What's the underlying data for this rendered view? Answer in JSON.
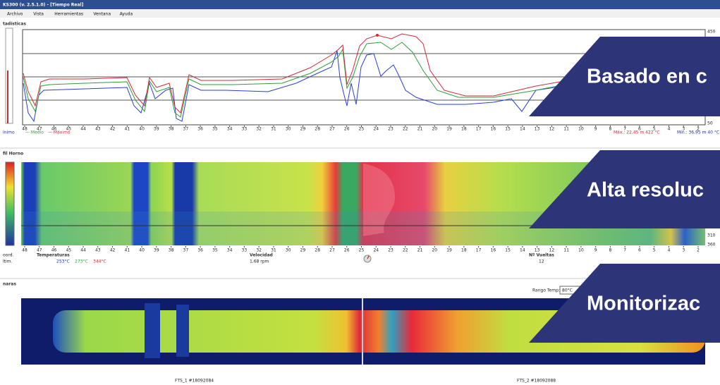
{
  "window": {
    "title": "KS300 (v. 2.5.1.0) - [Tiempo Real]",
    "menu": [
      "Archivo",
      "Vista",
      "Herramientas",
      "Ventana",
      "Ayuda"
    ]
  },
  "stats_panel": {
    "label": "tadísticas",
    "scale_top": "450",
    "scale_bottom": "50",
    "x_labels": [
      "48",
      "47",
      "46",
      "45",
      "44",
      "43",
      "42",
      "41",
      "40",
      "39",
      "38",
      "37",
      "36",
      "35",
      "34",
      "33",
      "32",
      "31",
      "30",
      "29",
      "28",
      "27",
      "26",
      "25",
      "24",
      "23",
      "22",
      "21",
      "20",
      "19",
      "18",
      "17",
      "16",
      "15",
      "14",
      "13",
      "12",
      "11",
      "10",
      "9",
      "8",
      "7",
      "6",
      "5",
      "4",
      "3",
      "2"
    ],
    "legend": [
      "ínimo",
      "— Medio",
      "— Máximo"
    ],
    "max_info": "Máx.: 22,45 m 422 °C",
    "min_info": "Mín.: 36,95 m 40 °C"
  },
  "heat_panel": {
    "label": "fil Horno",
    "scale": [
      "310",
      "360"
    ],
    "coord_label": "oord.",
    "ultim_label": "ltim.",
    "temperaturas": "Temperaturas",
    "temps": [
      "253°C",
      "273°C",
      "344°C"
    ],
    "velocidad": "Velocidad",
    "rpm": "1,68 rpm",
    "vueltas": "Nº Vueltas",
    "vueltas_value": "12"
  },
  "camera_panel": {
    "label": "naras",
    "range_label": "Rango Temp:",
    "range_value": "80°C",
    "cams": [
      "FTS_1 #18092084",
      "FTS_2 #18092088"
    ]
  },
  "overlays": [
    "Basado en c",
    "Alta resoluc",
    "Monitorizac"
  ]
}
